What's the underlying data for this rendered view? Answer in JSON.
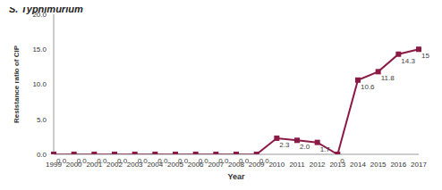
{
  "chart_data": {
    "type": "line",
    "title": "S. Typhimurium",
    "x_label": "Year",
    "y_label": "Resistance ratio of CIP",
    "categories": [
      "1999",
      "2000",
      "2001",
      "2002",
      "2003",
      "2004",
      "2005",
      "2006",
      "2007",
      "2008",
      "2009",
      "2010",
      "2011",
      "2012",
      "2013",
      "2014",
      "2015",
      "2016",
      "2017"
    ],
    "values": [
      0,
      0,
      0,
      0,
      0,
      0,
      0,
      0,
      0,
      0,
      0,
      2.3,
      2.0,
      1.7,
      0,
      10.6,
      11.8,
      14.3,
      15
    ],
    "value_labels": [
      "0.0",
      "0.0",
      "0.0",
      "0.0",
      "0.0",
      "0.0",
      "0.0",
      "0.0",
      "0.0",
      "0.0",
      "0.0",
      "2.3",
      "2.0",
      "1.7",
      "0",
      "10.6",
      "11.8",
      "14.3",
      "15"
    ],
    "color": "#8B1A47",
    "marker": "square",
    "ylim": [
      0,
      20
    ],
    "yticks": [
      {
        "value": 0,
        "label": "0.0"
      },
      {
        "value": 5,
        "label": "5.0"
      },
      {
        "value": 10,
        "label": "10.0"
      },
      {
        "value": 15,
        "label": "15.0"
      },
      {
        "value": 20,
        "label": "20.0"
      }
    ],
    "grid": false,
    "data_labels": true
  }
}
